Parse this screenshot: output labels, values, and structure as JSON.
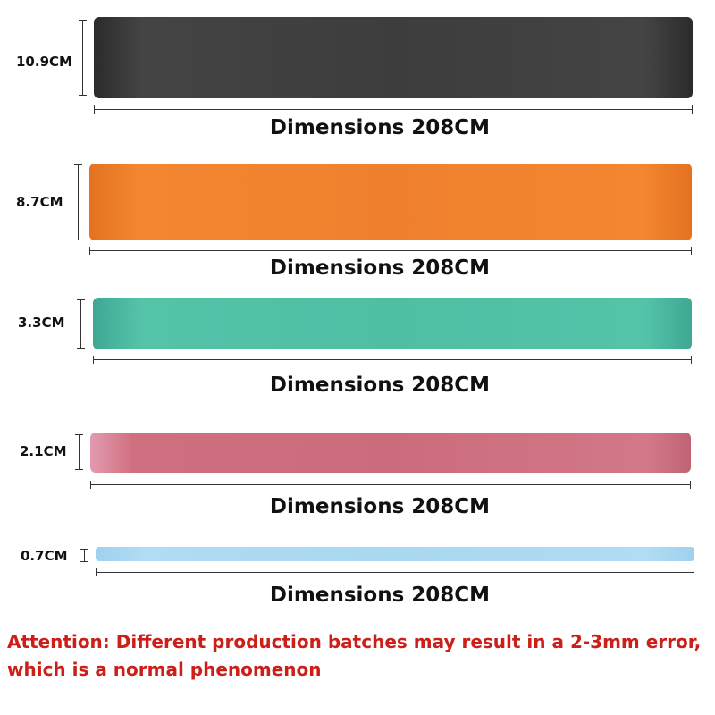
{
  "bands": [
    {
      "width_label": "10.9CM",
      "length_label": "Dimensions 208CM",
      "color": "#3d3d3d",
      "shade": "#2a2a2a"
    },
    {
      "width_label": "8.7CM",
      "length_label": "Dimensions 208CM",
      "color": "#f0802e",
      "shade": "#e07220"
    },
    {
      "width_label": "3.3CM",
      "length_label": "Dimensions 208CM",
      "color": "#4fbfa4",
      "shade": "#3fae94"
    },
    {
      "width_label": "2.1CM",
      "length_label": "Dimensions 208CM",
      "color": "#cf7080",
      "shade": "#c06070"
    },
    {
      "width_label": "0.7CM",
      "length_label": "Dimensions 208CM",
      "color": "#a9d8f2",
      "shade": "#96cbe8"
    }
  ],
  "note": {
    "line1": "Attention: Different production batches may result in a 2-3mm error,",
    "line2": "which is a normal phenomenon"
  }
}
